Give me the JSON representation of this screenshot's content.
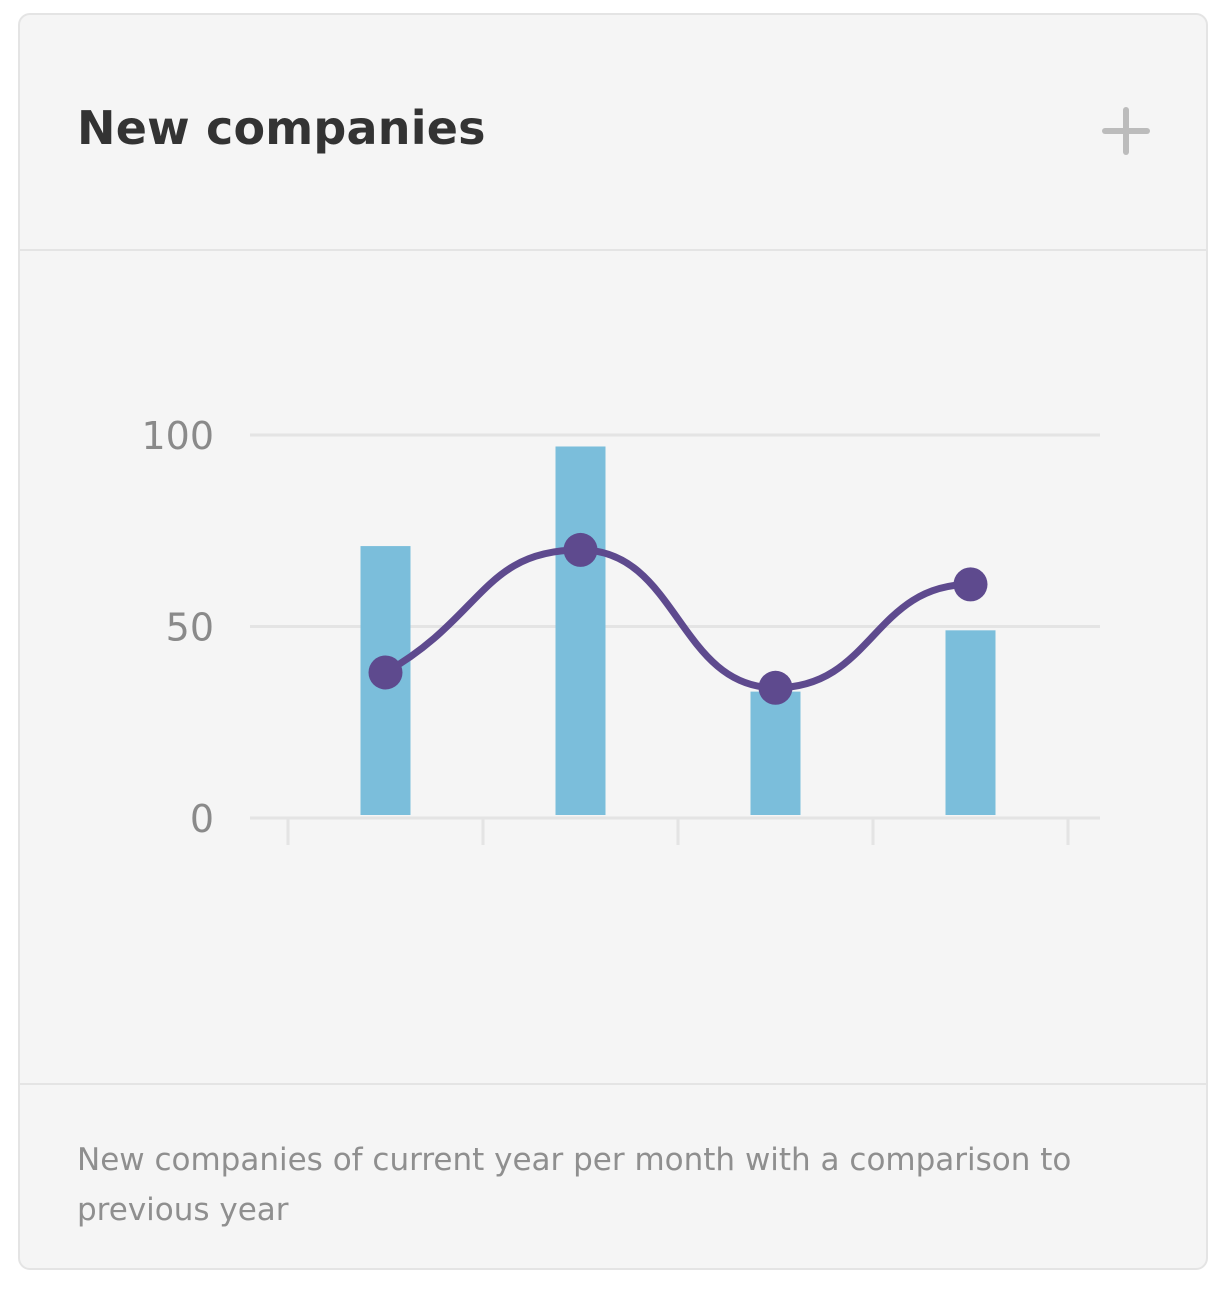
{
  "card": {
    "title": "New companies",
    "add_icon": "plus-icon",
    "description": "New companies of current year per month with a comparison to previous year"
  },
  "colors": {
    "bar": "#7bbedb",
    "line": "#5e4a8e",
    "grid": "#e4e4e4",
    "tick_text": "#8a8a8a",
    "add_icon": "#bcbcbc"
  },
  "chart_data": {
    "type": "bar",
    "title": "",
    "xlabel": "",
    "ylabel": "",
    "ylim": [
      0,
      100
    ],
    "y_ticks": [
      "0",
      "50",
      "100"
    ],
    "grid": true,
    "categories": [
      "",
      "",
      "",
      ""
    ],
    "series": [
      {
        "type": "bar",
        "values": [
          71,
          97,
          33,
          49
        ]
      },
      {
        "type": "line",
        "smooth": true,
        "values": [
          38,
          70,
          34,
          61
        ]
      }
    ]
  }
}
